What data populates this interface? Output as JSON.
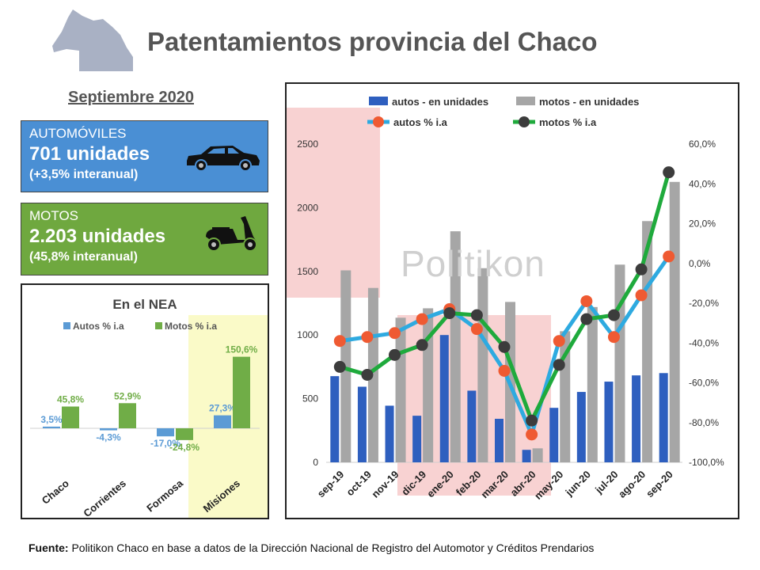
{
  "header": {
    "title": "Patentamientos provincia del Chaco",
    "period": "Septiembre 2020"
  },
  "cards": {
    "autos": {
      "label": "AUTOMÓVILES",
      "value": "701 unidades",
      "change": "(+3,5% interanual)"
    },
    "motos": {
      "label": "MOTOS",
      "value": "2.203 unidades",
      "change": "(45,8% interanual)"
    }
  },
  "watermark": "Politikon",
  "footer": {
    "bold": "Fuente:",
    "text": " Politikon Chaco en base a datos de la Dirección Nacional de Registro del Automotor  y Créditos Prendarios"
  },
  "colors": {
    "autos_card_bg": "#4a8fd4",
    "motos_card_bg": "#6fa83f",
    "autos_bar": "#2e5fbf",
    "motos_bar": "#a6a6a6",
    "autos_line": "#2eaae0",
    "autos_marker": "#ef5a32",
    "motos_line": "#1faa3c",
    "motos_marker": "#3c3c3c",
    "nea_autos": "#5b9bd5",
    "nea_motos": "#70ad47",
    "highlight_red": "#f8d2d2",
    "highlight_yellow": "#fafac8"
  },
  "chart_data": [
    {
      "type": "bar",
      "title": "En el NEA",
      "categories": [
        "Chaco",
        "Corrientes",
        "Formosa",
        "Misiones"
      ],
      "series": [
        {
          "name": "Autos % i.a",
          "values": [
            3.5,
            -4.3,
            -17.0,
            27.3
          ],
          "labels": [
            "3,5%",
            "-4,3%",
            "-17,0%",
            "27,3%"
          ]
        },
        {
          "name": "Motos % i.a",
          "values": [
            45.8,
            52.9,
            -24.8,
            150.6
          ],
          "labels": [
            "45,8%",
            "52,9%",
            "-24,8%",
            "150,6%"
          ]
        }
      ],
      "legend": "top"
    },
    {
      "type": "bar",
      "categories": [
        "sep-19",
        "oct-19",
        "nov-19",
        "dic-19",
        "ene-20",
        "feb-20",
        "mar-20",
        "abr-20",
        "may-20",
        "jun-20",
        "jul-20",
        "ago-20",
        "sep-20"
      ],
      "series": [
        {
          "name": "autos - en unidades",
          "type": "bar",
          "axis": "left",
          "values": [
            677,
            594,
            445,
            366,
            1000,
            563,
            342,
            98,
            428,
            553,
            634,
            683,
            701
          ]
        },
        {
          "name": "motos - en unidades",
          "type": "bar",
          "axis": "left",
          "values": [
            1508,
            1370,
            1136,
            1210,
            1815,
            1525,
            1260,
            110,
            1030,
            1220,
            1553,
            1895,
            2203
          ]
        },
        {
          "name": "autos % i.a",
          "type": "line",
          "axis": "right",
          "values": [
            -39.0,
            -37.0,
            -35.0,
            -28.0,
            -23.0,
            -33.0,
            -54.0,
            -86.0,
            -39.0,
            -19.0,
            -37.0,
            -16.0,
            3.5
          ]
        },
        {
          "name": "motos % i.a",
          "type": "line",
          "axis": "right",
          "values": [
            -52.0,
            -56.0,
            -46.0,
            -41.0,
            -25.0,
            -26.0,
            -42.0,
            -79.0,
            -51.0,
            -28.0,
            -26.0,
            -3.0,
            45.8
          ]
        }
      ],
      "ylim": [
        0,
        2500
      ],
      "yticks": [
        "0",
        "500",
        "1000",
        "1500",
        "2000",
        "2500"
      ],
      "y2lim": [
        -100,
        60
      ],
      "y2ticks": [
        "-100,0%",
        "-80,0%",
        "-60,0%",
        "-40,0%",
        "-20,0%",
        "0,0%",
        "20,0%",
        "40,0%",
        "60,0%"
      ],
      "legend": "top",
      "grid": false
    }
  ]
}
